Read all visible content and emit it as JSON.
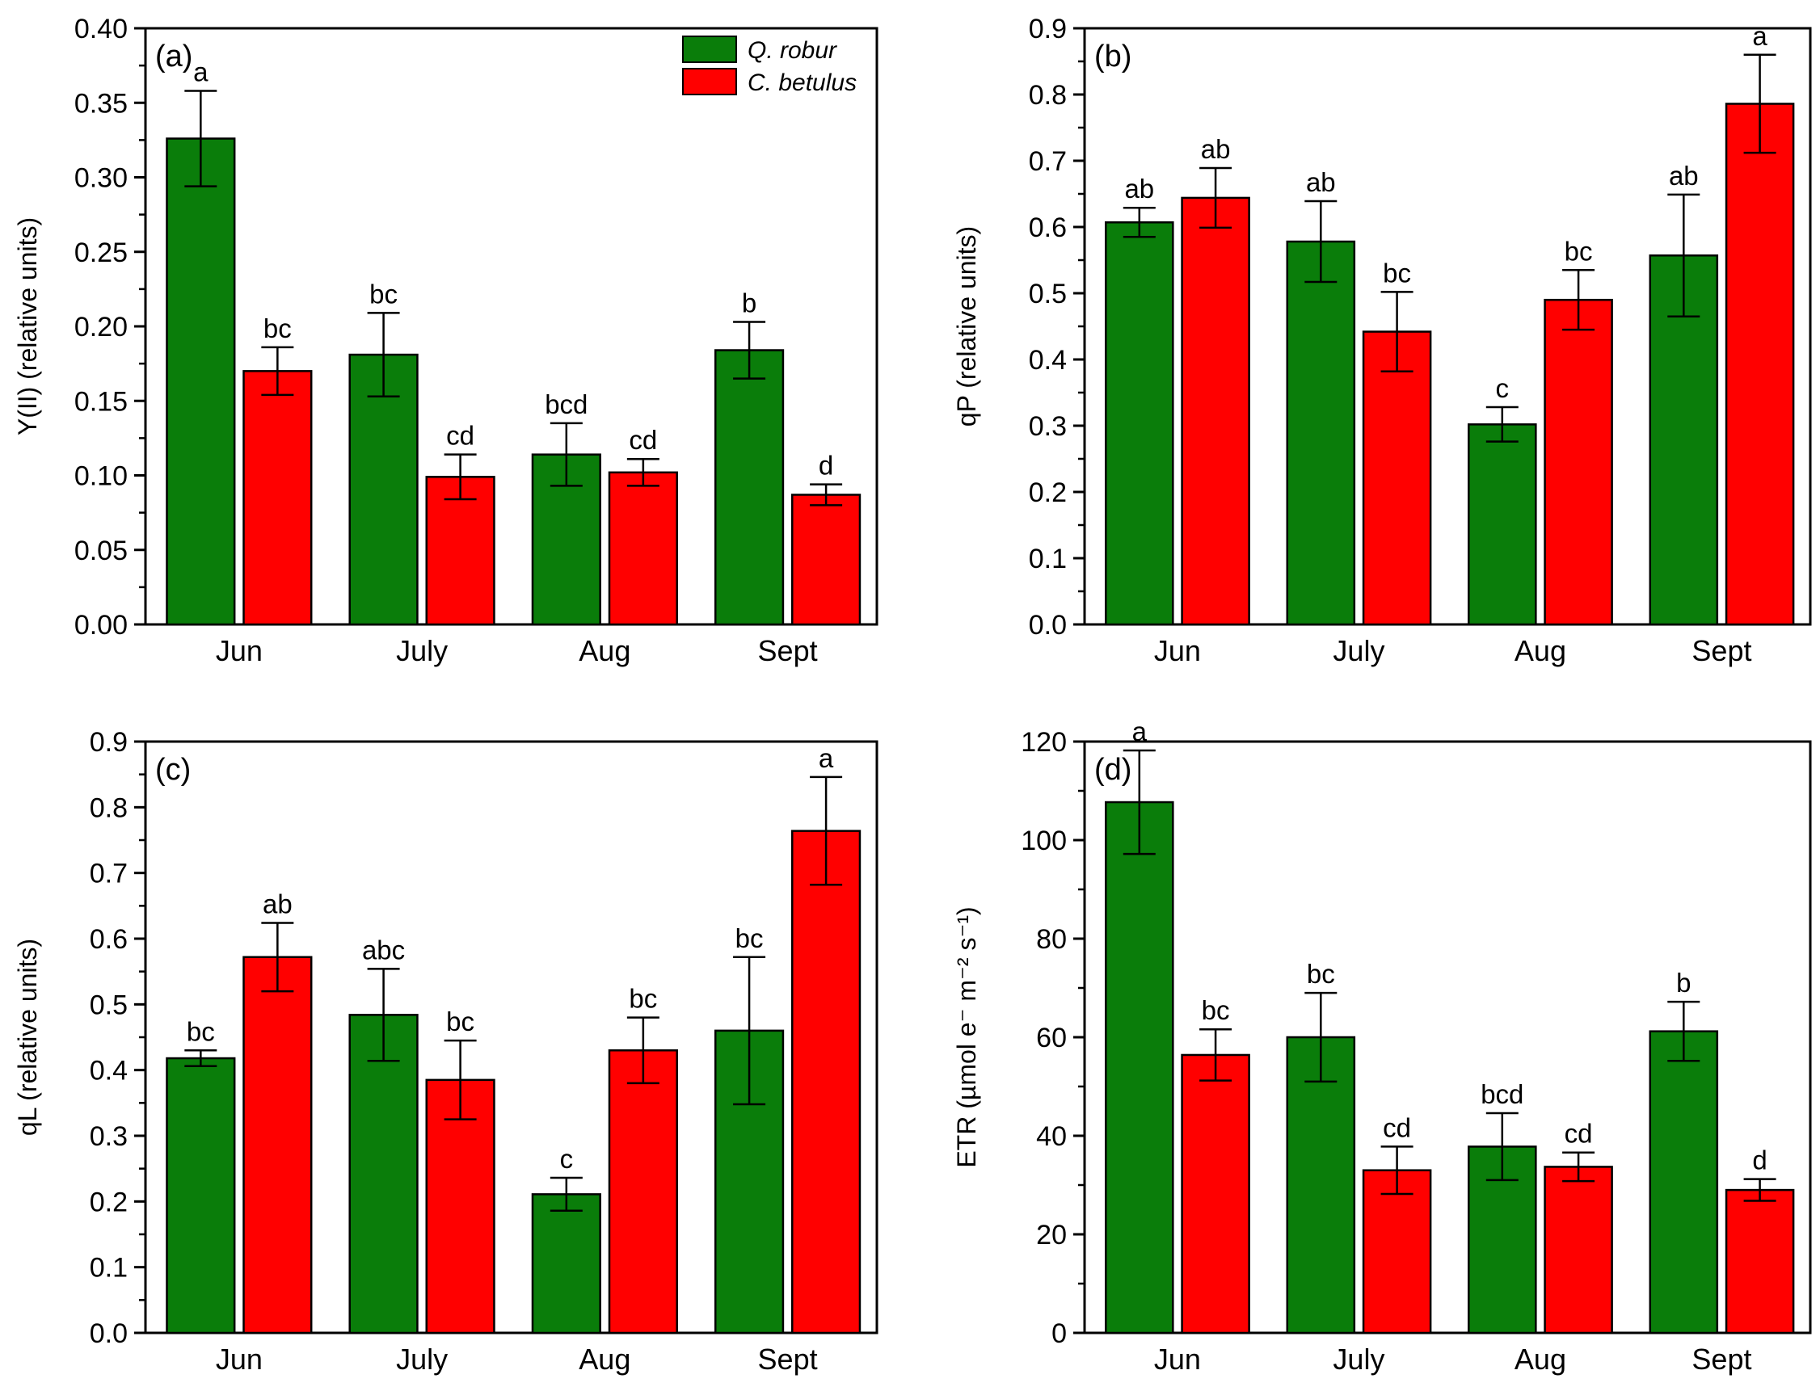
{
  "legend": [
    {
      "name": "Q. robur",
      "color": "#0a7d0a"
    },
    {
      "name": "C. betulus",
      "color": "#ff0000"
    }
  ],
  "colors": {
    "series0": "#0a7d0a",
    "series1": "#ff0000",
    "axis": "#000000"
  },
  "chart_data": [
    {
      "type": "bar",
      "panel": "(a)",
      "categories": [
        "Jun",
        "July",
        "Aug",
        "Sept"
      ],
      "ylabel": "Y(II) (relative units)",
      "ylim": [
        0,
        0.4
      ],
      "ytick_labels": [
        "0.00",
        "0.05",
        "0.10",
        "0.15",
        "0.20",
        "0.25",
        "0.30",
        "0.35",
        "0.40"
      ],
      "series": [
        {
          "name": "Q. robur",
          "values": [
            0.326,
            0.181,
            0.114,
            0.184
          ],
          "errors": [
            0.032,
            0.028,
            0.021,
            0.019
          ],
          "letters": [
            "a",
            "bc",
            "bcd",
            "b"
          ]
        },
        {
          "name": "C. betulus",
          "values": [
            0.17,
            0.099,
            0.102,
            0.087
          ],
          "errors": [
            0.016,
            0.015,
            0.009,
            0.007
          ],
          "letters": [
            "bc",
            "cd",
            "cd",
            "d"
          ]
        }
      ],
      "legend": true
    },
    {
      "type": "bar",
      "panel": "(b)",
      "categories": [
        "Jun",
        "July",
        "Aug",
        "Sept"
      ],
      "ylabel": "qP (relative units)",
      "ylim": [
        0,
        0.9
      ],
      "ytick_labels": [
        "0.0",
        "0.1",
        "0.2",
        "0.3",
        "0.4",
        "0.5",
        "0.6",
        "0.7",
        "0.8",
        "0.9"
      ],
      "series": [
        {
          "name": "Q. robur",
          "values": [
            0.607,
            0.578,
            0.302,
            0.557
          ],
          "errors": [
            0.022,
            0.061,
            0.026,
            0.092
          ],
          "letters": [
            "ab",
            "ab",
            "c",
            "ab"
          ]
        },
        {
          "name": "C. betulus",
          "values": [
            0.644,
            0.442,
            0.49,
            0.786
          ],
          "errors": [
            0.045,
            0.06,
            0.045,
            0.074
          ],
          "letters": [
            "ab",
            "bc",
            "bc",
            "a"
          ]
        }
      ],
      "legend": false
    },
    {
      "type": "bar",
      "panel": "(c)",
      "categories": [
        "Jun",
        "July",
        "Aug",
        "Sept"
      ],
      "ylabel": "qL (relative units)",
      "ylim": [
        0,
        0.9
      ],
      "ytick_labels": [
        "0.0",
        "0.1",
        "0.2",
        "0.3",
        "0.4",
        "0.5",
        "0.6",
        "0.7",
        "0.8",
        "0.9"
      ],
      "series": [
        {
          "name": "Q. robur",
          "values": [
            0.418,
            0.484,
            0.211,
            0.46
          ],
          "errors": [
            0.012,
            0.07,
            0.025,
            0.112
          ],
          "letters": [
            "bc",
            "abc",
            "c",
            "bc"
          ]
        },
        {
          "name": "C. betulus",
          "values": [
            0.572,
            0.385,
            0.43,
            0.764
          ],
          "errors": [
            0.052,
            0.06,
            0.05,
            0.082
          ],
          "letters": [
            "ab",
            "bc",
            "bc",
            "a"
          ]
        }
      ],
      "legend": false
    },
    {
      "type": "bar",
      "panel": "(d)",
      "categories": [
        "Jun",
        "July",
        "Aug",
        "Sept"
      ],
      "ylabel": "ETR (µmol e⁻ m⁻² s⁻¹)",
      "ylim": [
        0,
        120
      ],
      "ytick_labels": [
        "0",
        "20",
        "40",
        "60",
        "80",
        "100",
        "120"
      ],
      "series": [
        {
          "name": "Q. robur",
          "values": [
            107.7,
            60.0,
            37.8,
            61.2
          ],
          "errors": [
            10.5,
            9.0,
            6.8,
            6.0
          ],
          "letters": [
            "a",
            "bc",
            "bcd",
            "b"
          ]
        },
        {
          "name": "C. betulus",
          "values": [
            56.4,
            33.0,
            33.7,
            29.0
          ],
          "errors": [
            5.2,
            4.8,
            2.9,
            2.2
          ],
          "letters": [
            "bc",
            "cd",
            "cd",
            "d"
          ]
        }
      ],
      "legend": false
    }
  ]
}
